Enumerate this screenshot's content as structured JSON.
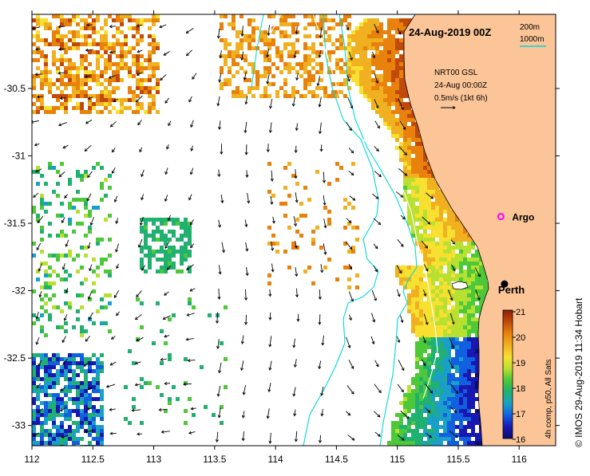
{
  "map": {
    "title": "24-Aug-2019 00Z",
    "depth_legend": {
      "contour_1": "200m",
      "contour_2": "1000m",
      "color": "#00d8d8"
    },
    "current_legend": {
      "line1": "NRT00 GSL",
      "line2": "24-Aug 00:00Z",
      "line3": "0.5m/s (1kt 6h)"
    },
    "x_ticks": [
      {
        "value": 112,
        "label": "112"
      },
      {
        "value": 112.5,
        "label": "112.5"
      },
      {
        "value": 113,
        "label": "113"
      },
      {
        "value": 113.5,
        "label": "113.5"
      },
      {
        "value": 114,
        "label": "114"
      },
      {
        "value": 114.5,
        "label": "114.5"
      },
      {
        "value": 115,
        "label": "115"
      },
      {
        "value": 115.5,
        "label": "115.5"
      },
      {
        "value": 116,
        "label": "116"
      }
    ],
    "y_ticks": [
      {
        "value": -30.5,
        "label": "-30.5"
      },
      {
        "value": -31,
        "label": "-31"
      },
      {
        "value": -31.5,
        "label": "-31.5"
      },
      {
        "value": -32,
        "label": "-32"
      },
      {
        "value": -32.5,
        "label": "-32.5"
      },
      {
        "value": -33,
        "label": "-33"
      }
    ],
    "lon_range": [
      112,
      116.3
    ],
    "lat_range": [
      -33.15,
      -29.95
    ],
    "places": [
      {
        "name": "Argo",
        "lon": 115.85,
        "lat": -31.45,
        "marker": "argo"
      },
      {
        "name": "Perth",
        "lon": 115.88,
        "lat": -31.95,
        "marker": "dot"
      }
    ],
    "colorbar": {
      "ticks": [
        "21",
        "20",
        "19",
        "18",
        "17",
        "16"
      ],
      "caption": "4h comp, p50, All Sats",
      "colors": [
        "#8a1f0c",
        "#c14a0a",
        "#e8820c",
        "#f0b020",
        "#f7e030",
        "#b8e030",
        "#4cc838",
        "#20b070",
        "#1aa0c8",
        "#1060e0",
        "#1818b0",
        "#0c0c70"
      ]
    },
    "land_color": "#fcc598",
    "credit": "© IMOS 29-Aug-2019 11:34 Hobart"
  }
}
